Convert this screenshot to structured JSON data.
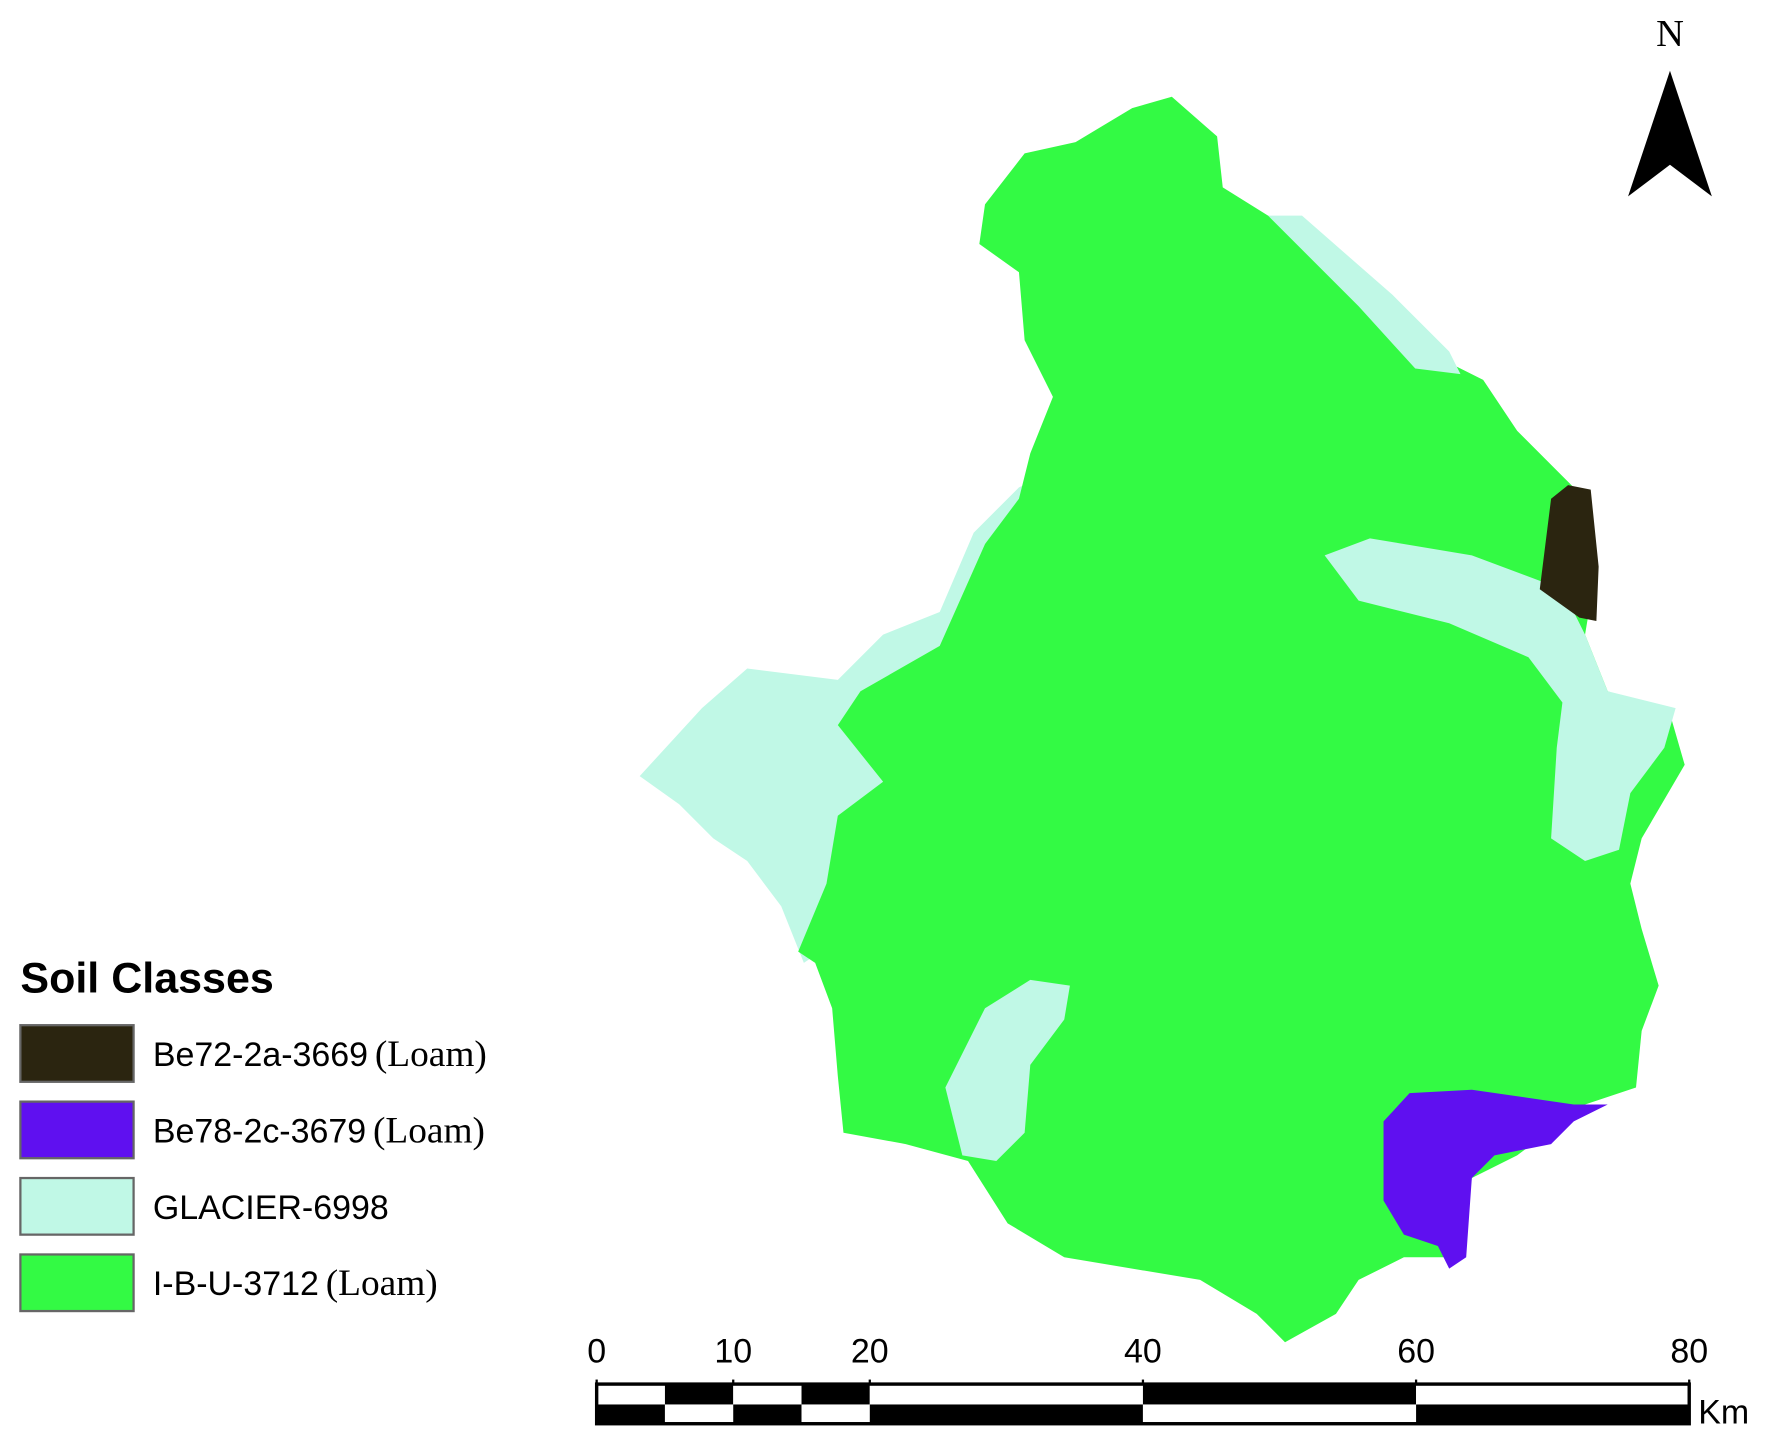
{
  "north_arrow": {
    "label": "N"
  },
  "legend": {
    "title": "Soil Classes",
    "items": [
      {
        "code": "Be72-2a-3669",
        "texture": "(Loam)",
        "color": "#2b2510"
      },
      {
        "code": "Be78-2c-3679",
        "texture": "(Loam)",
        "color": "#5f10f0"
      },
      {
        "code": "GLACIER-6998",
        "color": "#c0f8e6"
      },
      {
        "code": "I-B-U-3712",
        "texture": "(Loam)",
        "color": "#33fa44"
      }
    ]
  },
  "scale_bar": {
    "ticks": [
      0,
      10,
      20,
      40,
      60,
      80
    ],
    "unit": "Km"
  }
}
